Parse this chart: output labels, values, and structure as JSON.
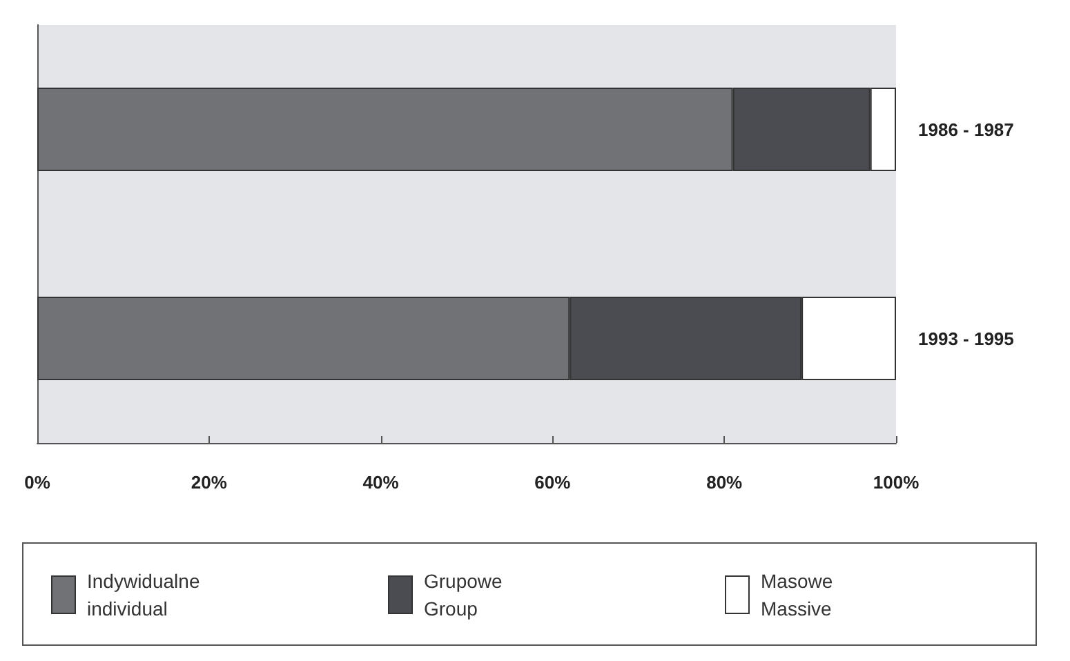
{
  "chart_data": {
    "type": "bar",
    "orientation": "horizontal",
    "stacked": true,
    "categories": [
      "1986 - 1987",
      "1993 - 1995"
    ],
    "series": [
      {
        "name": "Indywidualne\nindividual",
        "color": "#707276",
        "values": [
          81,
          62
        ]
      },
      {
        "name": "Grupowe\nGroup",
        "color": "#4a4c51",
        "values": [
          16,
          27
        ]
      },
      {
        "name": "Masowe\nMassive",
        "color": "#ffffff",
        "values": [
          3,
          11
        ]
      }
    ],
    "xlim": [
      0,
      100
    ],
    "xticks": [
      {
        "value": 0,
        "label": "0%"
      },
      {
        "value": 20,
        "label": "20%"
      },
      {
        "value": 40,
        "label": "40%"
      },
      {
        "value": 60,
        "label": "60%"
      },
      {
        "value": 80,
        "label": "80%"
      },
      {
        "value": 100,
        "label": "100%"
      }
    ],
    "grid": false,
    "legend": "bottom"
  }
}
